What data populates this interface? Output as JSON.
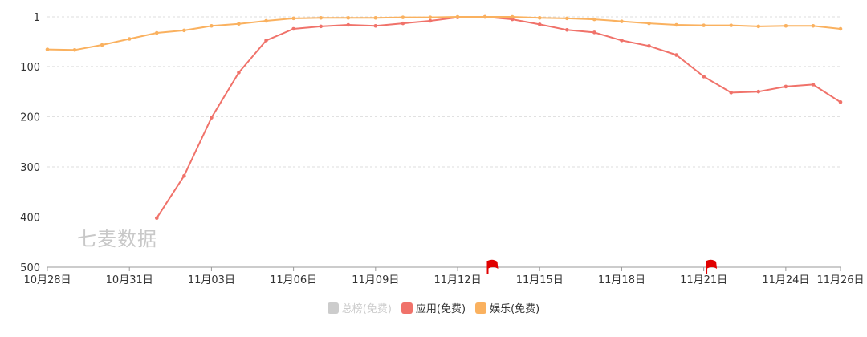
{
  "watermark": "七麦数据",
  "colors": {
    "disabled": "#cccccc",
    "app": "#f0726a",
    "ent": "#fab15f",
    "grid": "#dddddd",
    "axis": "#999999",
    "flag": "#e00000"
  },
  "legend": [
    {
      "label": "总榜(免费)",
      "color": "#cccccc",
      "active": false
    },
    {
      "label": "应用(免费)",
      "color": "#f0726a",
      "active": true
    },
    {
      "label": "娱乐(免费)",
      "color": "#fab15f",
      "active": true
    }
  ],
  "chart_data": {
    "type": "line",
    "y_inverted": true,
    "ylim": [
      500,
      1
    ],
    "yticks": [
      1,
      100,
      200,
      300,
      400,
      500
    ],
    "xtick_labels": [
      "10月28日",
      "10月31日",
      "11月03日",
      "11月06日",
      "11月09日",
      "11月12日",
      "11月15日",
      "11月18日",
      "11月21日",
      "11月24日",
      "11月26日"
    ],
    "xtick_index": [
      0,
      3,
      6,
      9,
      12,
      15,
      18,
      21,
      24,
      27,
      29
    ],
    "x": [
      "10月28日",
      "10月29日",
      "10月30日",
      "10月31日",
      "11月01日",
      "11月02日",
      "11月03日",
      "11月04日",
      "11月05日",
      "11月06日",
      "11月07日",
      "11月08日",
      "11月09日",
      "11月10日",
      "11月11日",
      "11月12日",
      "11月13日",
      "11月14日",
      "11月15日",
      "11月16日",
      "11月17日",
      "11月18日",
      "11月19日",
      "11月20日",
      "11月21日",
      "11月22日",
      "11月23日",
      "11月24日",
      "11月25日",
      "11月26日"
    ],
    "flag_days": [
      16.1,
      24.1
    ],
    "series": [
      {
        "name": "应用(免费)",
        "color": "#f0726a",
        "values": [
          null,
          null,
          null,
          null,
          402,
          318,
          202,
          112,
          48,
          25,
          20,
          17,
          19,
          14,
          9,
          2,
          1,
          6,
          16,
          27,
          32,
          48,
          59,
          77,
          120,
          152,
          150,
          140,
          136,
          171
        ]
      },
      {
        "name": "娱乐(免费)",
        "color": "#fab15f",
        "values": [
          66,
          67,
          57,
          45,
          33,
          28,
          19,
          15,
          9,
          4,
          3,
          3,
          3,
          2,
          2,
          1,
          1,
          1,
          3,
          4,
          6,
          10,
          14,
          17,
          18,
          18,
          20,
          19,
          19,
          25
        ]
      }
    ]
  }
}
